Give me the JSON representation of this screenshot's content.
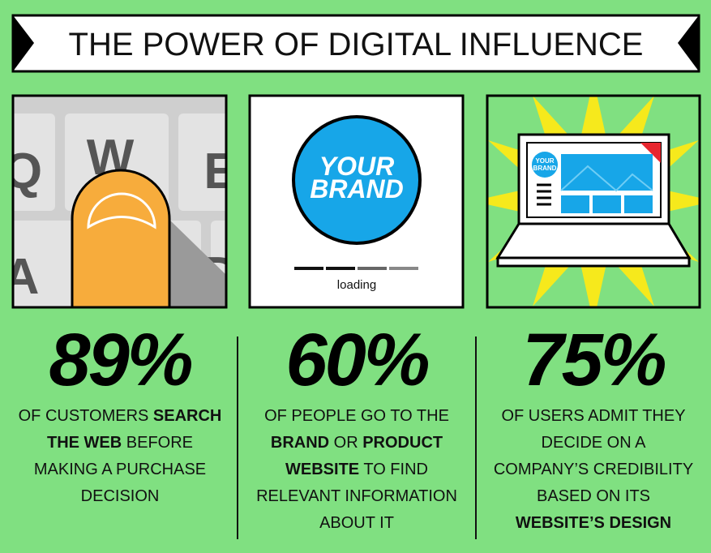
{
  "header": {
    "title": "THE POWER OF DIGITAL INFLUENCE"
  },
  "panels": [
    {
      "image_text": [
        "Q",
        "W",
        "E",
        "A",
        "D"
      ],
      "stat": "89%",
      "lines": [
        [
          {
            "text": "OF CUSTOMERS ",
            "bold": false
          },
          {
            "text": "SEARCH",
            "bold": true
          }
        ],
        [
          {
            "text": "THE WEB",
            "bold": true
          },
          {
            "text": " BEFORE",
            "bold": false
          }
        ],
        [
          {
            "text": "MAKING A PURCHASE",
            "bold": false
          }
        ],
        [
          {
            "text": "DECISION",
            "bold": false
          }
        ]
      ]
    },
    {
      "image_text": [
        "YOUR",
        "BRAND",
        "loading"
      ],
      "stat": "60%",
      "lines": [
        [
          {
            "text": "OF PEOPLE GO TO THE",
            "bold": false
          }
        ],
        [
          {
            "text": "BRAND",
            "bold": true
          },
          {
            "text": " OR ",
            "bold": false
          },
          {
            "text": "PRODUCT",
            "bold": true
          }
        ],
        [
          {
            "text": "WEBSITE",
            "bold": true
          },
          {
            "text": " TO FIND",
            "bold": false
          }
        ],
        [
          {
            "text": "RELEVANT INFORMATION",
            "bold": false
          }
        ],
        [
          {
            "text": "ABOUT IT",
            "bold": false
          }
        ]
      ]
    },
    {
      "image_text": [
        "YOUR",
        "BRAND"
      ],
      "stat": "75%",
      "lines": [
        [
          {
            "text": "OF USERS ADMIT THEY",
            "bold": false
          }
        ],
        [
          {
            "text": "DECIDE ON A",
            "bold": false
          }
        ],
        [
          {
            "text": "COMPANY’S CREDIBILITY",
            "bold": false
          }
        ],
        [
          {
            "text": "BASED ON ITS",
            "bold": false
          }
        ],
        [
          {
            "text": "WEBSITE’S DESIGN",
            "bold": true
          }
        ]
      ]
    }
  ]
}
